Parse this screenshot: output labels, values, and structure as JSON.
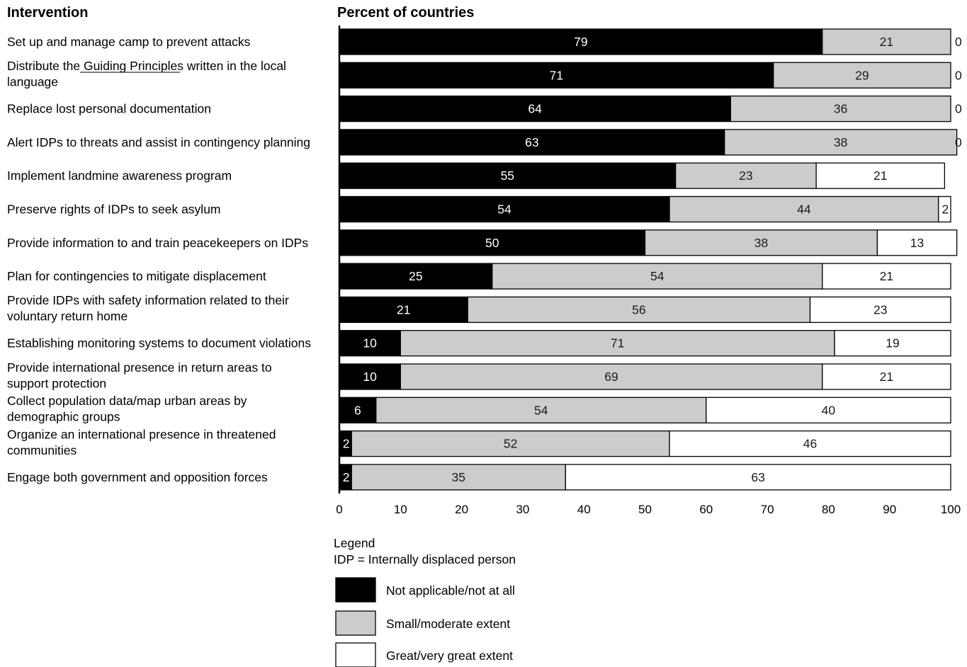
{
  "chart_data": {
    "type": "bar",
    "orientation": "horizontal",
    "stacked": true,
    "title": "",
    "row_header": "Intervention",
    "xlabel": "Percent of countries",
    "xlim": [
      0,
      100
    ],
    "xticks": [
      0,
      10,
      20,
      30,
      40,
      50,
      60,
      70,
      80,
      90,
      100
    ],
    "grid": false,
    "categories": [
      [
        "Set up and manage camp to prevent attacks"
      ],
      [
        "Distribute the Guiding Principles written in the local",
        "language"
      ],
      [
        "Replace lost personal documentation"
      ],
      [
        "Alert IDPs to threats and assist in contingency planning"
      ],
      [
        "Implement landmine awareness program"
      ],
      [
        "Preserve rights of IDPs to seek asylum"
      ],
      [
        "Provide information to and train peacekeepers on IDPs"
      ],
      [
        "Plan for contingencies to mitigate displacement"
      ],
      [
        "Provide IDPs with safety information related to their",
        "voluntary return home"
      ],
      [
        "Establishing monitoring systems to document violations"
      ],
      [
        "Provide international presence in return areas to",
        "support protection"
      ],
      [
        "Collect population data/map urban areas by",
        "demographic groups"
      ],
      [
        "Organize an international presence in threatened",
        "communities"
      ],
      [
        "Engage both government and opposition forces"
      ]
    ],
    "underlined_term": "Guiding Principles",
    "series": [
      {
        "name": "Not applicable/not at all",
        "color": "#000000",
        "values": [
          79,
          71,
          64,
          63,
          55,
          54,
          50,
          25,
          21,
          10,
          10,
          6,
          2,
          2
        ]
      },
      {
        "name": "Small/moderate extent",
        "color": "#cccccc",
        "values": [
          21,
          29,
          36,
          38,
          23,
          44,
          38,
          54,
          56,
          71,
          69,
          54,
          52,
          35
        ]
      },
      {
        "name": "Great/very great extent",
        "color": "#ffffff",
        "values": [
          0,
          0,
          0,
          0,
          21,
          2,
          13,
          21,
          23,
          19,
          21,
          40,
          46,
          63
        ]
      }
    ],
    "legend": {
      "title": "Legend",
      "note": "IDP = Internally displaced person",
      "placement": "bottom"
    }
  }
}
